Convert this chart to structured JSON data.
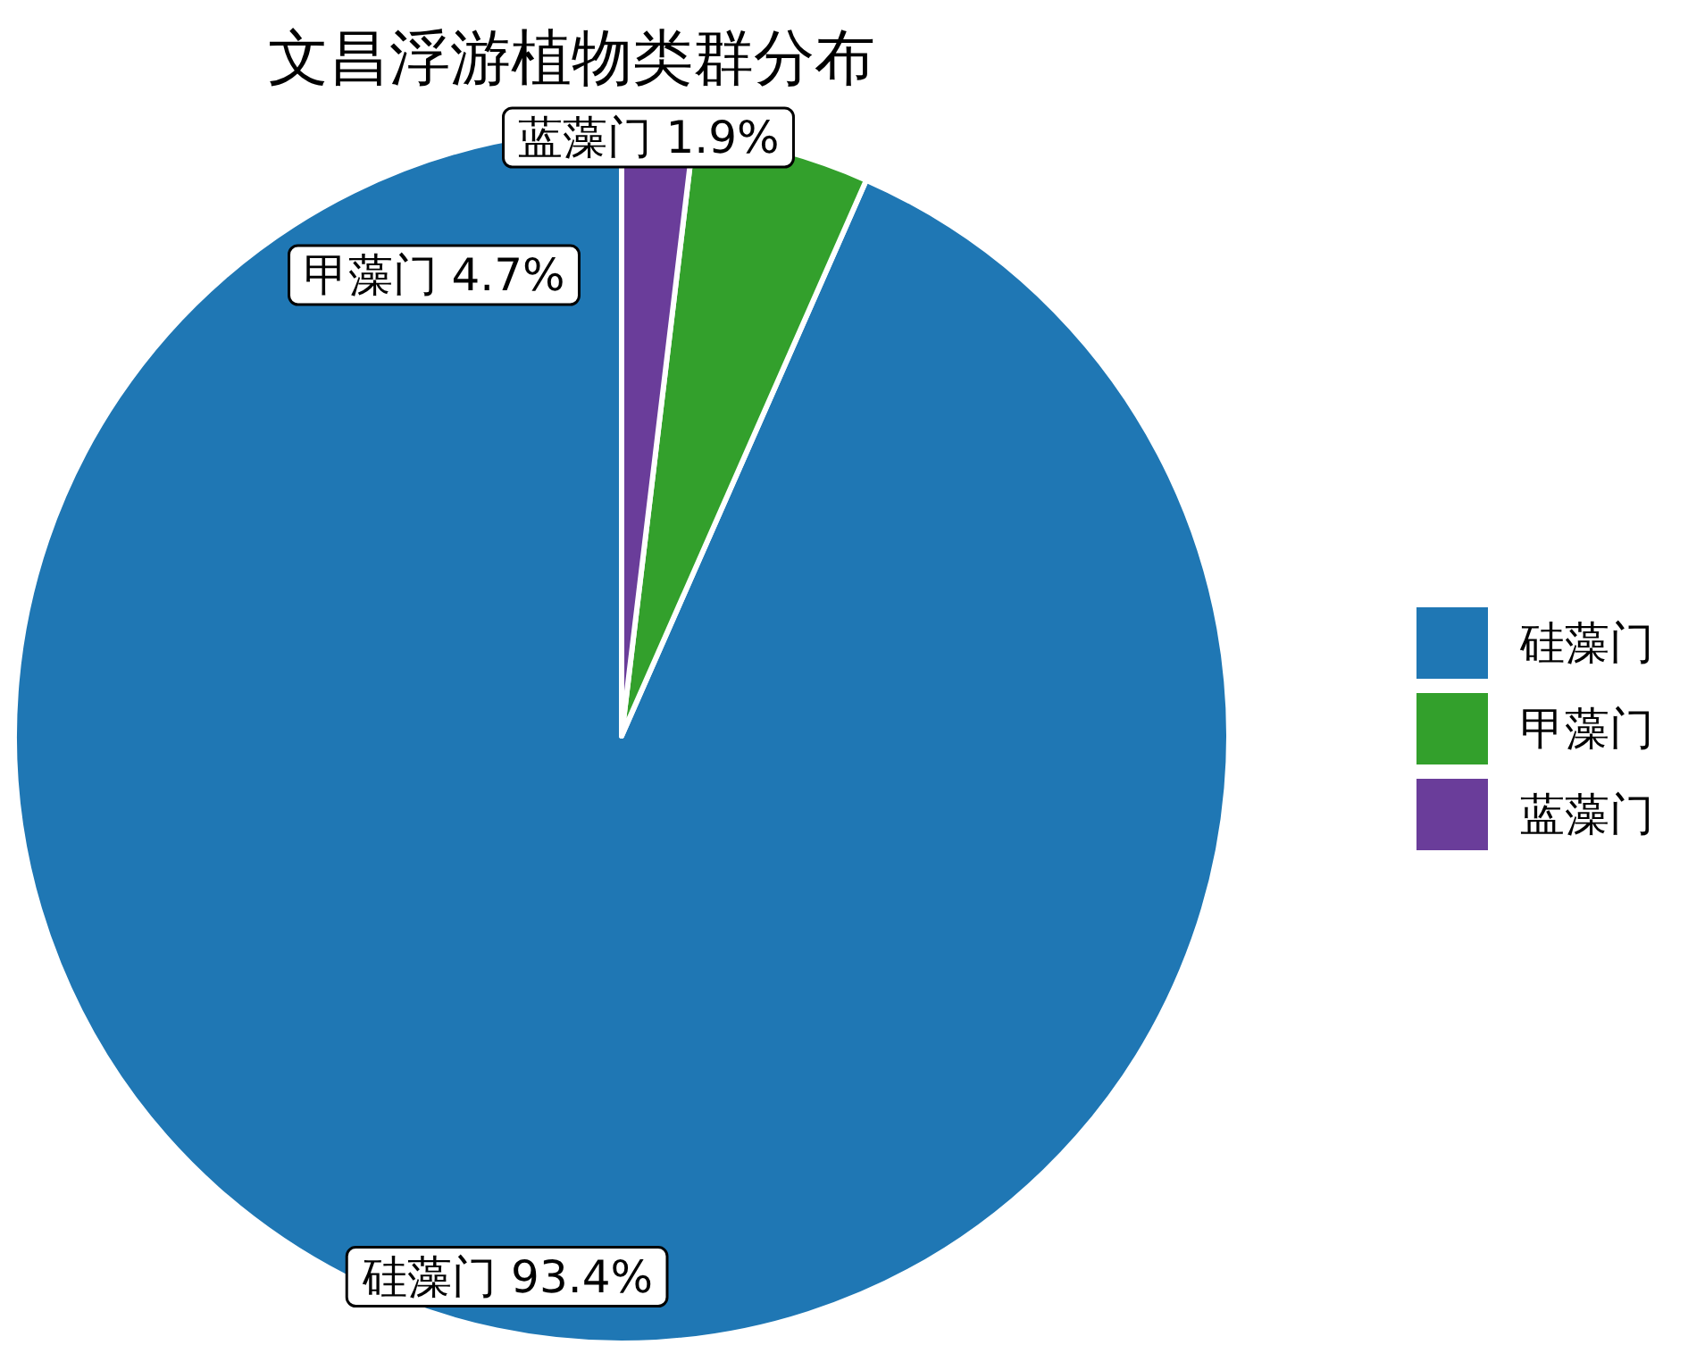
{
  "chart_data": {
    "type": "pie",
    "title": "文昌浮游植物类群分布",
    "categories": [
      "硅藻门",
      "甲藻门",
      "蓝藻门"
    ],
    "values": [
      93.4,
      4.7,
      1.9
    ],
    "value_labels": [
      "93.4%",
      "4.7%",
      "1.9%"
    ],
    "colors": [
      "#1f77b4",
      "#33a02c",
      "#6a3d9a"
    ],
    "legend": "right"
  }
}
